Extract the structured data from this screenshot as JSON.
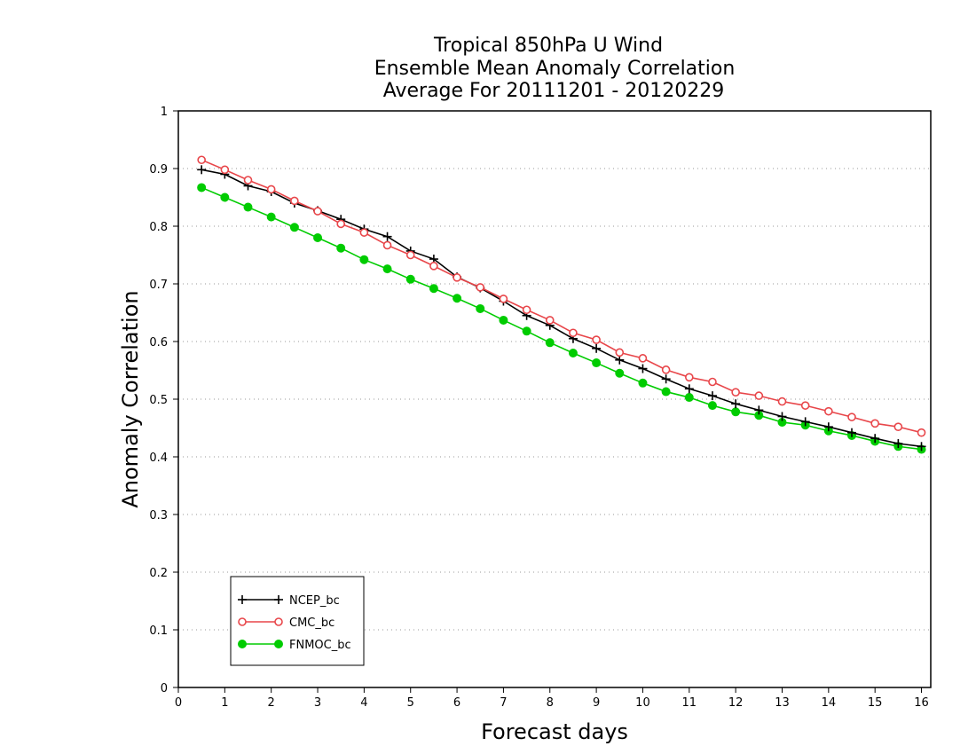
{
  "chart_data": {
    "type": "line",
    "title_lines": [
      "Tropical 850hPa U Wind",
      "Ensemble Mean Anomaly Correlation",
      "Average For 20111201 - 20120229"
    ],
    "xlabel": "Forecast days",
    "ylabel": "Anomaly Correlation",
    "xlim": [
      0,
      16.2
    ],
    "ylim": [
      0,
      1
    ],
    "xticks": [
      0,
      1,
      2,
      3,
      4,
      5,
      6,
      7,
      8,
      9,
      10,
      11,
      12,
      13,
      14,
      15,
      16
    ],
    "yticks": [
      0,
      0.1,
      0.2,
      0.3,
      0.4,
      0.5,
      0.6,
      0.7,
      0.8,
      0.9,
      1
    ],
    "ytick_labels": [
      "0",
      "0.1",
      "0.2",
      "0.3",
      "0.4",
      "0.5",
      "0.6",
      "0.7",
      "0.8",
      "0.9",
      "1"
    ],
    "grid": "horizontal dotted",
    "legend_position": "bottom-left",
    "x": [
      0.5,
      1,
      1.5,
      2,
      2.5,
      3,
      3.5,
      4,
      4.5,
      5,
      5.5,
      6,
      6.5,
      7,
      7.5,
      8,
      8.5,
      9,
      9.5,
      10,
      10.5,
      11,
      11.5,
      12,
      12.5,
      13,
      13.5,
      14,
      14.5,
      15,
      15.5,
      16
    ],
    "series": [
      {
        "name": "NCEP_bc",
        "color": "#000000",
        "marker": "plus",
        "values": [
          0.898,
          0.89,
          0.87,
          0.86,
          0.84,
          0.827,
          0.812,
          0.795,
          0.782,
          0.757,
          0.743,
          0.712,
          0.693,
          0.67,
          0.645,
          0.628,
          0.605,
          0.588,
          0.568,
          0.553,
          0.535,
          0.518,
          0.506,
          0.492,
          0.481,
          0.47,
          0.461,
          0.452,
          0.442,
          0.432,
          0.423,
          0.418
        ]
      },
      {
        "name": "CMC_bc",
        "color": "#e8464a",
        "marker": "open-circle",
        "values": [
          0.915,
          0.898,
          0.88,
          0.864,
          0.844,
          0.826,
          0.804,
          0.789,
          0.767,
          0.75,
          0.731,
          0.711,
          0.694,
          0.674,
          0.655,
          0.637,
          0.615,
          0.603,
          0.581,
          0.571,
          0.551,
          0.538,
          0.53,
          0.512,
          0.506,
          0.496,
          0.489,
          0.479,
          0.469,
          0.458,
          0.452,
          0.442
        ]
      },
      {
        "name": "FNMOC_bc",
        "color": "#00cc00",
        "marker": "filled-circle",
        "values": [
          0.867,
          0.85,
          0.833,
          0.816,
          0.798,
          0.78,
          0.762,
          0.742,
          0.726,
          0.708,
          0.692,
          0.675,
          0.657,
          0.637,
          0.618,
          0.598,
          0.58,
          0.563,
          0.545,
          0.528,
          0.513,
          0.503,
          0.489,
          0.478,
          0.472,
          0.46,
          0.455,
          0.445,
          0.437,
          0.427,
          0.418,
          0.413
        ]
      }
    ]
  }
}
